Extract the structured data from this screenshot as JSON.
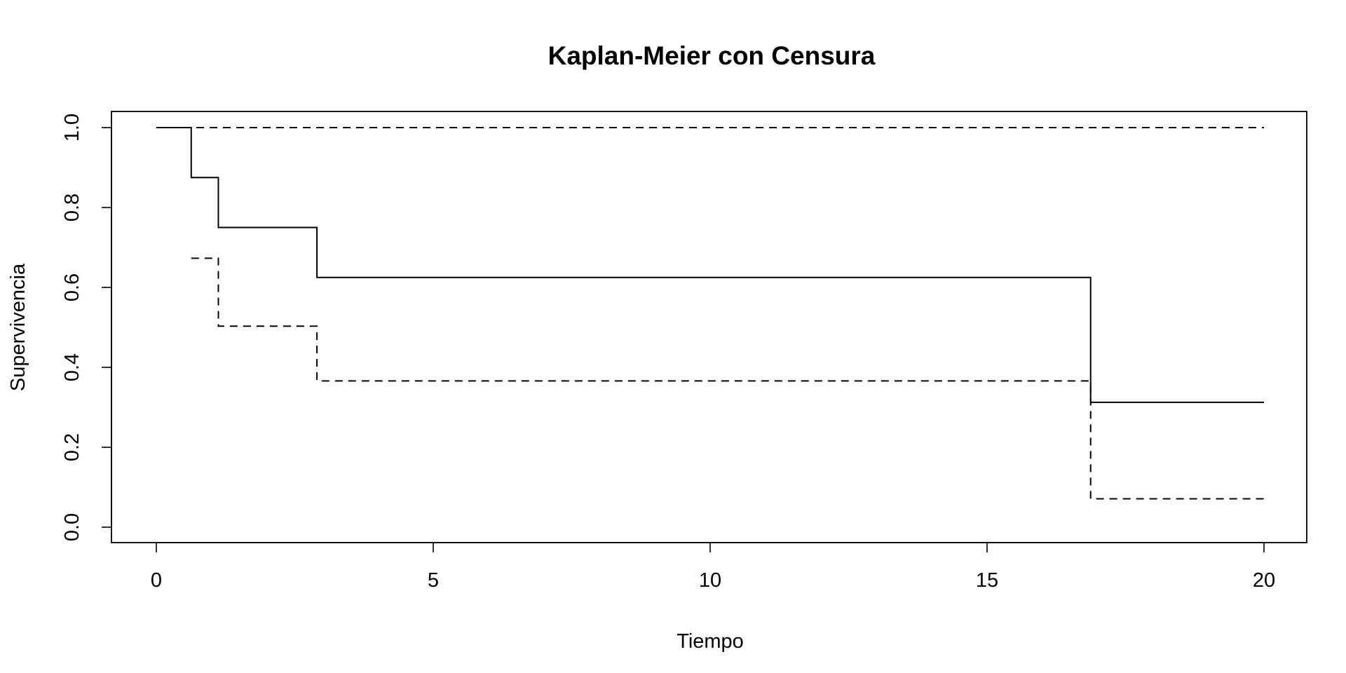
{
  "chart_data": {
    "type": "line",
    "title": "Kaplan-Meier con Censura",
    "xlabel": "Tiempo",
    "ylabel": "Supervivencia",
    "xlim": [
      0,
      20
    ],
    "ylim": [
      0,
      1
    ],
    "x_ticks": [
      0,
      5,
      10,
      15,
      20
    ],
    "x_tick_labels": [
      "0",
      "5",
      "10",
      "15",
      "20"
    ],
    "y_ticks": [
      0,
      0.2,
      0.4,
      0.6,
      0.8,
      1
    ],
    "y_tick_labels": [
      "0.0",
      "0.2",
      "0.4",
      "0.6",
      "0.8",
      "1.0"
    ],
    "grid": false,
    "legend": "none",
    "line_color": "#000000",
    "series": [
      {
        "style": "solid",
        "step": true,
        "x": [
          0,
          0.63,
          1.12,
          2.9,
          16.87,
          20
        ],
        "y": [
          1.0,
          0.875,
          0.75,
          0.625,
          0.3125,
          0.3125
        ]
      },
      {
        "style": "dashed",
        "step": true,
        "x": [
          0,
          20
        ],
        "y": [
          1.0,
          1.0
        ]
      },
      {
        "style": "dashed",
        "step": true,
        "x": [
          0.63,
          1.12,
          2.9,
          16.87,
          20
        ],
        "y": [
          0.673,
          0.503,
          0.366,
          0.071,
          0.071
        ]
      }
    ]
  }
}
